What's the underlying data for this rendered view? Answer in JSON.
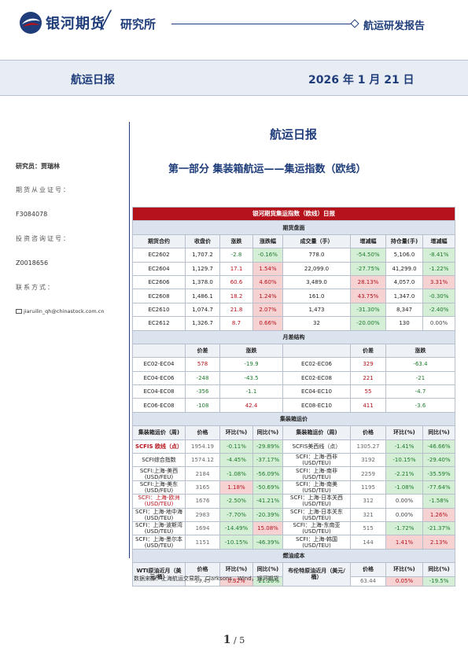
{
  "header": {
    "brand": "银河期货",
    "institute": "研究所",
    "report_type": "航运研发报告"
  },
  "band": {
    "title": "航运日报",
    "date": "2026 年 1 月 21 日"
  },
  "sidebar": {
    "analyst": "研究员：贾瑞林",
    "futures_cert_label": "期货从业证号：",
    "futures_cert": "F3084078",
    "invest_cert_label": "投资咨询证号：",
    "invest_cert": "Z0018656",
    "contact_label": "联系方式：",
    "email": "jiaruilin_qh@chinastock.com.cn"
  },
  "main": {
    "title": "航运日报",
    "section_title": "第一部分    集装箱航运——集运指数（欧线）"
  },
  "table": {
    "title": "银河期货集运指数（欧线）日报",
    "futures": {
      "label": "期货盘面",
      "headers": [
        "期货合约",
        "收盘价",
        "涨跌",
        "涨跌幅",
        "成交量（手）",
        "增减幅",
        "持仓量(手)",
        "增减幅"
      ],
      "rows": [
        {
          "contract": "EC2602",
          "close": "1,707.2",
          "chg": "-2.8",
          "chg_sign": "neg",
          "pct": "-0.16%",
          "pct_sign": "neg",
          "vol": "778.0",
          "vol_pct": "-54.50%",
          "vol_sign": "neg",
          "oi": "5,106.0",
          "oi_pct": "-8.41%",
          "oi_sign": "neg"
        },
        {
          "contract": "EC2604",
          "close": "1,129.7",
          "chg": "17.1",
          "chg_sign": "pos",
          "pct": "1.54%",
          "pct_sign": "pos",
          "vol": "22,099.0",
          "vol_pct": "-27.75%",
          "vol_sign": "neg",
          "oi": "41,299.0",
          "oi_pct": "-1.22%",
          "oi_sign": "neg"
        },
        {
          "contract": "EC2606",
          "close": "1,378.0",
          "chg": "60.6",
          "chg_sign": "pos",
          "pct": "4.60%",
          "pct_sign": "pos",
          "vol": "3,489.0",
          "vol_pct": "28.13%",
          "vol_sign": "pos",
          "oi": "4,057.0",
          "oi_pct": "3.31%",
          "oi_sign": "pos"
        },
        {
          "contract": "EC2608",
          "close": "1,486.1",
          "chg": "18.2",
          "chg_sign": "pos",
          "pct": "1.24%",
          "pct_sign": "pos",
          "vol": "161.0",
          "vol_pct": "43.75%",
          "vol_sign": "pos",
          "oi": "1,347.0",
          "oi_pct": "-0.30%",
          "oi_sign": "neg"
        },
        {
          "contract": "EC2610",
          "close": "1,074.7",
          "chg": "21.8",
          "chg_sign": "pos",
          "pct": "2.07%",
          "pct_sign": "pos",
          "vol": "1,473",
          "vol_pct": "-31.30%",
          "vol_sign": "neg",
          "oi": "8,347",
          "oi_pct": "-2.40%",
          "oi_sign": "neg"
        },
        {
          "contract": "EC2612",
          "close": "1,326.7",
          "chg": "8.7",
          "chg_sign": "pos",
          "pct": "0.66%",
          "pct_sign": "pos",
          "vol": "32",
          "vol_pct": "-20.00%",
          "vol_sign": "neg",
          "oi": "130",
          "oi_pct": "0.00%",
          "oi_sign": "zero"
        }
      ]
    },
    "spread": {
      "label": "月差结构",
      "headers": [
        "价差",
        "涨跌",
        "价差",
        "涨跌"
      ],
      "rows": [
        {
          "a_name": "EC02-EC04",
          "a_val": "578",
          "a_val_sign": "pos",
          "a_chg": "-19.9",
          "a_chg_sign": "neg",
          "b_name": "EC02-EC06",
          "b_val": "329",
          "b_val_sign": "pos",
          "b_chg": "-63.4",
          "b_chg_sign": "neg"
        },
        {
          "a_name": "EC04-EC06",
          "a_val": "-248",
          "a_val_sign": "neg",
          "a_chg": "-43.5",
          "a_chg_sign": "neg",
          "b_name": "EC02-EC08",
          "b_val": "221",
          "b_val_sign": "pos",
          "b_chg": "-21",
          "b_chg_sign": "neg"
        },
        {
          "a_name": "EC04-EC08",
          "a_val": "-356",
          "a_val_sign": "neg",
          "a_chg": "-1.1",
          "a_chg_sign": "neg",
          "b_name": "EC04-EC10",
          "b_val": "55",
          "b_val_sign": "pos",
          "b_chg": "-4.7",
          "b_chg_sign": "neg"
        },
        {
          "a_name": "EC06-EC08",
          "a_val": "-108",
          "a_val_sign": "neg",
          "a_chg": "42.4",
          "a_chg_sign": "pos",
          "b_name": "EC08-EC10",
          "b_val": "411",
          "b_val_sign": "pos",
          "b_chg": "-3.6",
          "b_chg_sign": "neg"
        }
      ]
    },
    "freight": {
      "label": "集装箱运价",
      "headers": [
        "集装箱运价（周)",
        "价格",
        "环比(%)",
        "同比(%)",
        "集装箱运价（周)",
        "价格",
        "环比(%)",
        "同比(%)"
      ],
      "rows": [
        {
          "a_name": "SCFIS 欧线（点）",
          "a_style": "redbold",
          "a_price": "1954.19",
          "a_mom": "-0.11%",
          "a_mom_sign": "neg",
          "a_yoy": "-29.89%",
          "a_yoy_sign": "neg",
          "b_name": "SCFIS美西线（点）",
          "b_style": "",
          "b_price": "1305.27",
          "b_mom": "-1.41%",
          "b_mom_sign": "neg",
          "b_yoy": "-46.66%",
          "b_yoy_sign": "neg"
        },
        {
          "a_name": "SCFI综合指数",
          "a_style": "",
          "a_price": "1574.12",
          "a_mom": "-4.45%",
          "a_mom_sign": "neg",
          "a_yoy": "-37.17%",
          "a_yoy_sign": "neg",
          "b_name": "SCFI：上海-西非 (USD/TEU)",
          "b_style": "",
          "b_price": "3192",
          "b_mom": "-10.15%",
          "b_mom_sign": "neg",
          "b_yoy": "-29.40%",
          "b_yoy_sign": "neg"
        },
        {
          "a_name": "SCFI:上海-美西 (USD/FEU)",
          "a_style": "",
          "a_price": "2184",
          "a_mom": "-1.08%",
          "a_mom_sign": "neg",
          "a_yoy": "-56.09%",
          "a_yoy_sign": "neg",
          "b_name": "SCFI：上海-南非 (USD/TEU)",
          "b_style": "",
          "b_price": "2259",
          "b_mom": "-2.21%",
          "b_mom_sign": "neg",
          "b_yoy": "-35.59%",
          "b_yoy_sign": "neg"
        },
        {
          "a_name": "SCFI:上海-美东 (USD/FEU)",
          "a_style": "",
          "a_price": "3165",
          "a_mom": "1.18%",
          "a_mom_sign": "pos",
          "a_yoy": "-50.69%",
          "a_yoy_sign": "neg",
          "b_name": "SCFI：上海-南美 (USD/TEU)",
          "b_style": "",
          "b_price": "1195",
          "b_mom": "-1.08%",
          "b_mom_sign": "neg",
          "b_yoy": "-77.64%",
          "b_yoy_sign": "neg"
        },
        {
          "a_name": "SCFI：上海-欧洲 (USD/TEU)",
          "a_style": "red",
          "a_price": "1676",
          "a_mom": "-2.50%",
          "a_mom_sign": "neg",
          "a_yoy": "-41.21%",
          "a_yoy_sign": "neg",
          "b_name": "SCFI：上海-日本关西 (USD/TEU)",
          "b_style": "",
          "b_price": "312",
          "b_mom": "0.00%",
          "b_mom_sign": "zero",
          "b_yoy": "-1.58%",
          "b_yoy_sign": "neg"
        },
        {
          "a_name": "SCFI：上海-地中海 (USD/TEU)",
          "a_style": "",
          "a_price": "2983",
          "a_mom": "-7.70%",
          "a_mom_sign": "neg",
          "a_yoy": "-20.39%",
          "a_yoy_sign": "neg",
          "b_name": "SCFI：上海-日本关东 (USD/TEU)",
          "b_style": "",
          "b_price": "321",
          "b_mom": "0.00%",
          "b_mom_sign": "zero",
          "b_yoy": "1.26%",
          "b_yoy_sign": "pos"
        },
        {
          "a_name": "SCFI：上海-波斯湾 (USD/TEU)",
          "a_style": "",
          "a_price": "1694",
          "a_mom": "-14.49%",
          "a_mom_sign": "neg",
          "a_yoy": "15.08%",
          "a_yoy_sign": "pos",
          "b_name": "SCFI：上海-东南亚 (USD/TEU)",
          "b_style": "",
          "b_price": "515",
          "b_mom": "-1.72%",
          "b_mom_sign": "neg",
          "b_yoy": "-21.37%",
          "b_yoy_sign": "neg"
        },
        {
          "a_name": "SCFI：上海-墨尔本 (USD/TEU)",
          "a_style": "",
          "a_price": "1151",
          "a_mom": "-10.15%",
          "a_mom_sign": "neg",
          "a_yoy": "-46.39%",
          "a_yoy_sign": "neg",
          "b_name": "SCFI：上海-韩国 (USD/TEU)",
          "b_style": "",
          "b_price": "144",
          "b_mom": "1.41%",
          "b_mom_sign": "pos",
          "b_yoy": "2.13%",
          "b_yoy_sign": "pos"
        }
      ]
    },
    "fuel": {
      "label": "燃油成本",
      "a_name": "WTI原油近月（美元/桶）",
      "a_headers": [
        "价格",
        "环比(%)",
        "同比(%)"
      ],
      "a_price": "59.45",
      "a_mom": "0.32%",
      "a_mom_sign": "pos",
      "a_yoy": "-21.20%",
      "a_yoy_sign": "neg",
      "b_name": "布伦特原油近月（美元/桶）",
      "b_headers": [
        "价格",
        "环比(%)",
        "同比(%)"
      ],
      "b_price": "63.44",
      "b_mom": "0.05%",
      "b_mom_sign": "pos",
      "b_yoy": "-19.5%",
      "b_yoy_sign": "neg"
    }
  },
  "source": "数据来源：上海航运交易所，Clarksons，Wind，银河期货",
  "page": {
    "current": "1",
    "sep": "/",
    "total": "5"
  },
  "colors": {
    "brand_blue": "#1f3d7a",
    "brand_red": "#b5121b",
    "down_green": "#1e7a2c",
    "down_bg": "#d4efd6",
    "up_bg": "#f6d2d3"
  },
  "icons": {
    "logo": "galaxy-logo-icon",
    "email": "envelope-icon"
  }
}
